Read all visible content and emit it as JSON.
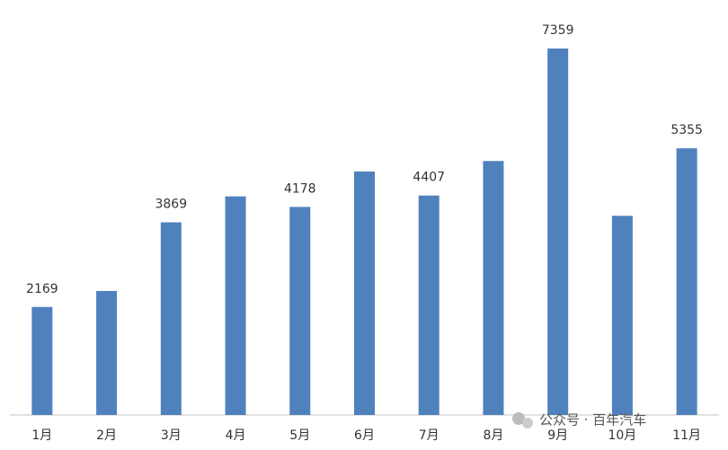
{
  "chart_data": {
    "type": "bar",
    "categories": [
      "1月",
      "2月",
      "3月",
      "4月",
      "5月",
      "6月",
      "7月",
      "8月",
      "9月",
      "10月",
      "11月"
    ],
    "values": [
      2169,
      2490,
      3869,
      4390,
      4178,
      4890,
      4407,
      5100,
      7359,
      4000,
      5355
    ],
    "value_labels": [
      "2169",
      null,
      "3869",
      null,
      "4178",
      null,
      "4407",
      null,
      "7359",
      null,
      "5355"
    ],
    "color": "#4f81bd",
    "ylim": [
      0,
      8000
    ]
  },
  "watermark": "公众号 · 百年汽车"
}
